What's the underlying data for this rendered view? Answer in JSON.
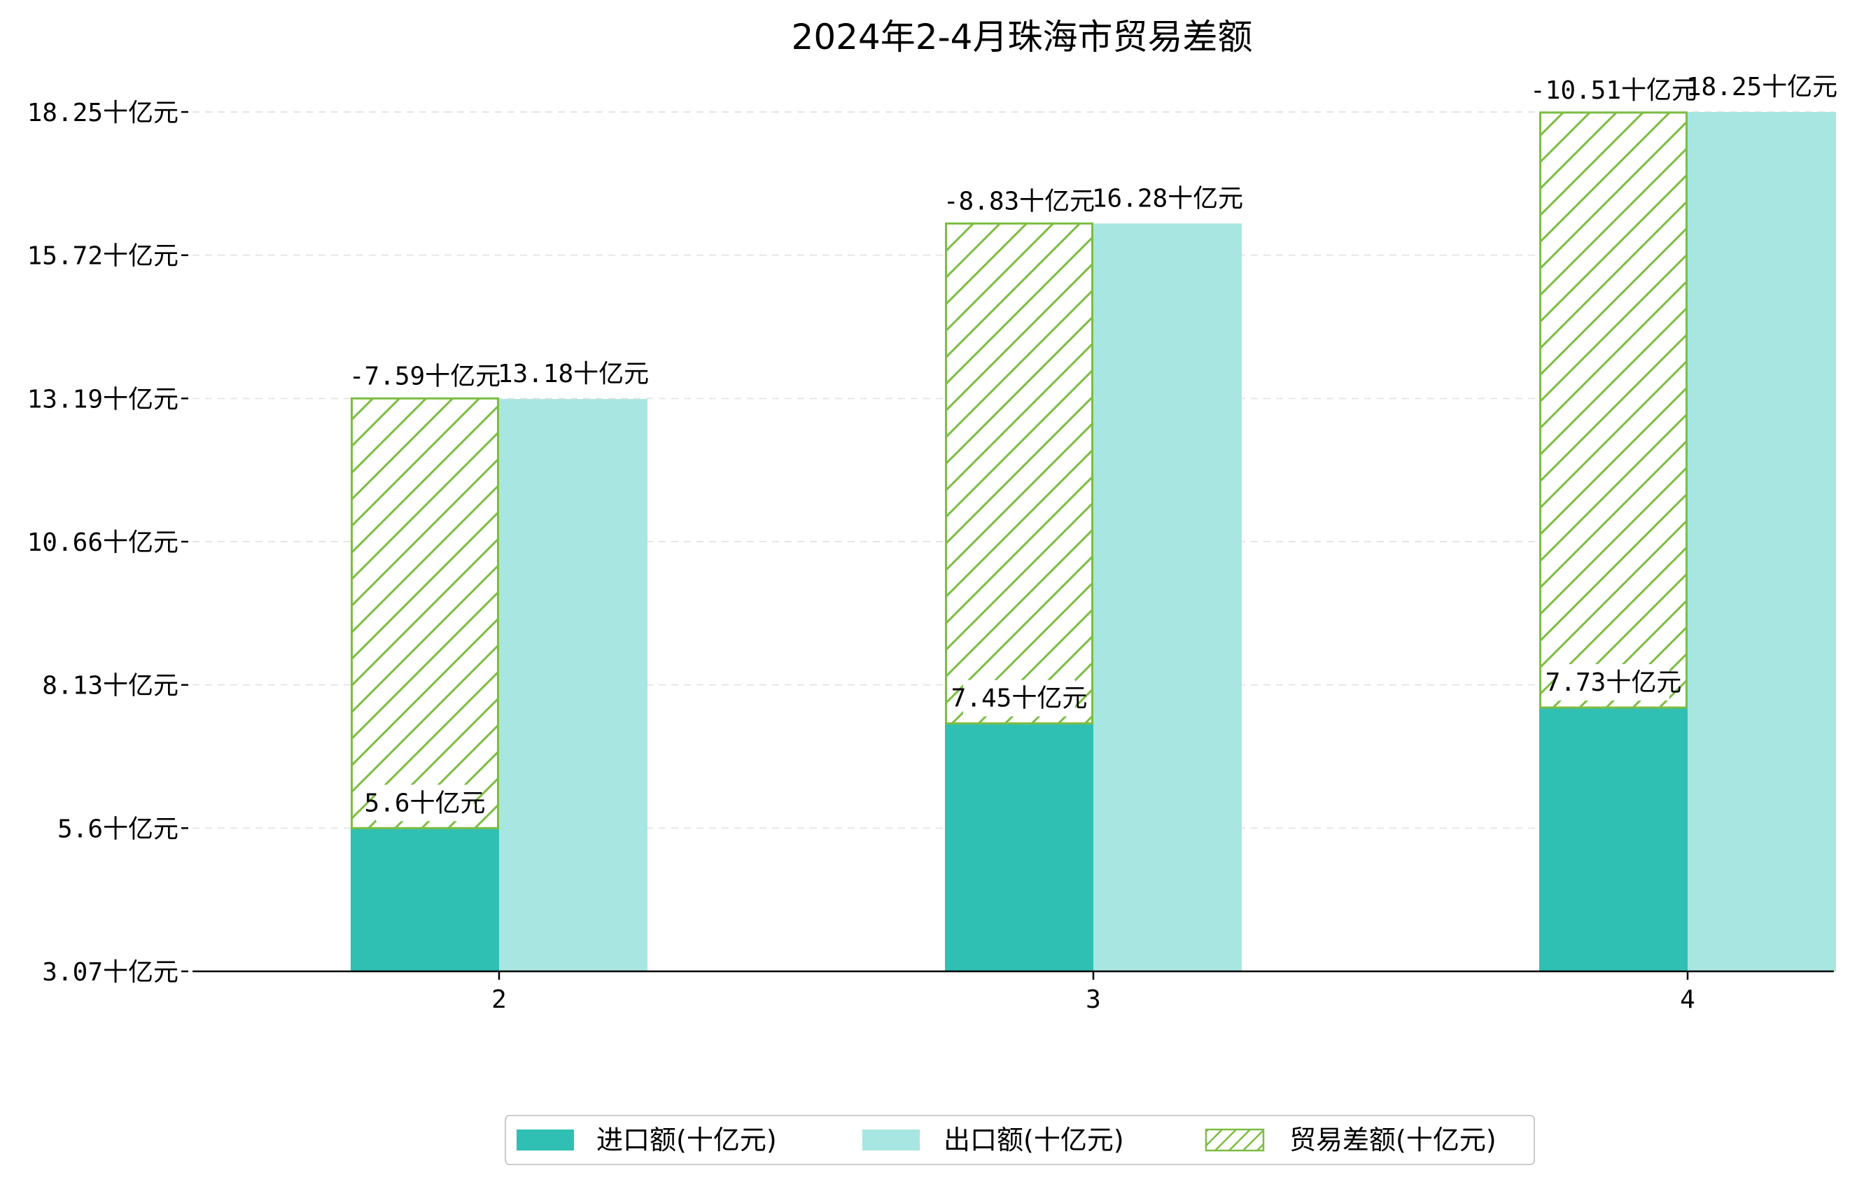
{
  "chart_data": {
    "type": "bar",
    "title": "2024年2-4月珠海市贸易差额",
    "categories": [
      "2",
      "3",
      "4"
    ],
    "series": [
      {
        "name": "进口额(十亿元)",
        "values": [
          5.6,
          7.45,
          7.73
        ],
        "color": "#30bfb3"
      },
      {
        "name": "出口额(十亿元)",
        "values": [
          13.18,
          16.28,
          18.25
        ],
        "color": "#a8e6e1"
      },
      {
        "name": "贸易差额(十亿元)",
        "values": [
          -7.59,
          -8.83,
          -10.51
        ],
        "color": "#7cbd42",
        "hatch": true
      }
    ],
    "data_labels": {
      "import": [
        "5.6十亿元",
        "7.45十亿元",
        "7.73十亿元"
      ],
      "export": [
        "13.18十亿元",
        "16.28十亿元",
        "18.25十亿元"
      ],
      "balance": [
        "-7.59十亿元",
        "-8.83十亿元",
        "-10.51十亿元"
      ]
    },
    "y_ticks": [
      "3.07十亿元",
      "5.6十亿元",
      "8.13十亿元",
      "10.66十亿元",
      "13.19十亿元",
      "15.72十亿元",
      "18.25十亿元"
    ],
    "ylim": [
      3.07,
      18.25
    ],
    "grid": true,
    "legend_position": "bottom-center"
  }
}
